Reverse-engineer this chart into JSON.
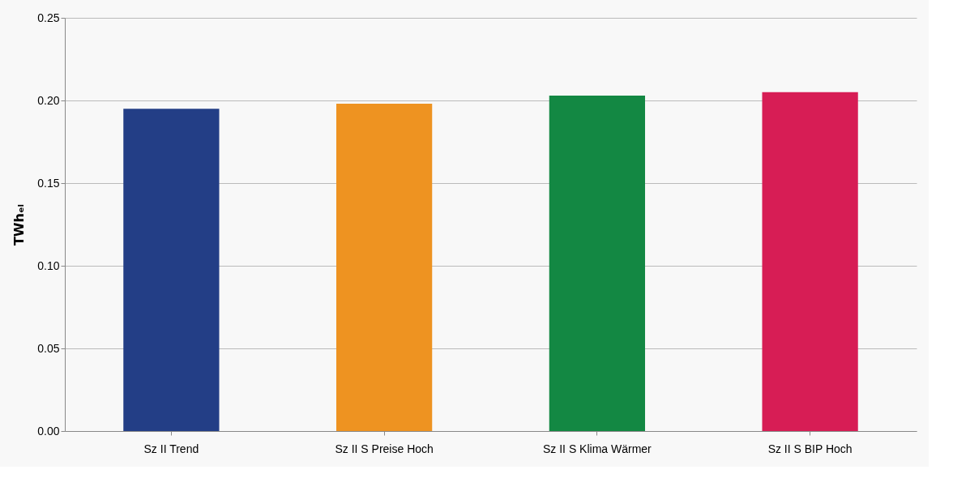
{
  "chart_data": {
    "type": "bar",
    "ylabel": "TWhₑₗ",
    "categories": [
      "Sz II Trend",
      "Sz II S Preise Hoch",
      "Sz II S Klima Wärmer",
      "Sz II S BIP Hoch"
    ],
    "values": [
      0.195,
      0.198,
      0.203,
      0.205
    ],
    "colors": [
      "#233e86",
      "#ee9321",
      "#138843",
      "#d71d55"
    ],
    "ylim": [
      0,
      0.25
    ],
    "yticks": [
      {
        "value": 0,
        "label": "0.00"
      },
      0.05,
      {
        "value": 0.1,
        "label": "0.10"
      },
      0.15,
      {
        "value": 0.2,
        "label": "0.20"
      },
      0.25
    ],
    "grid": "y",
    "legend": false
  }
}
